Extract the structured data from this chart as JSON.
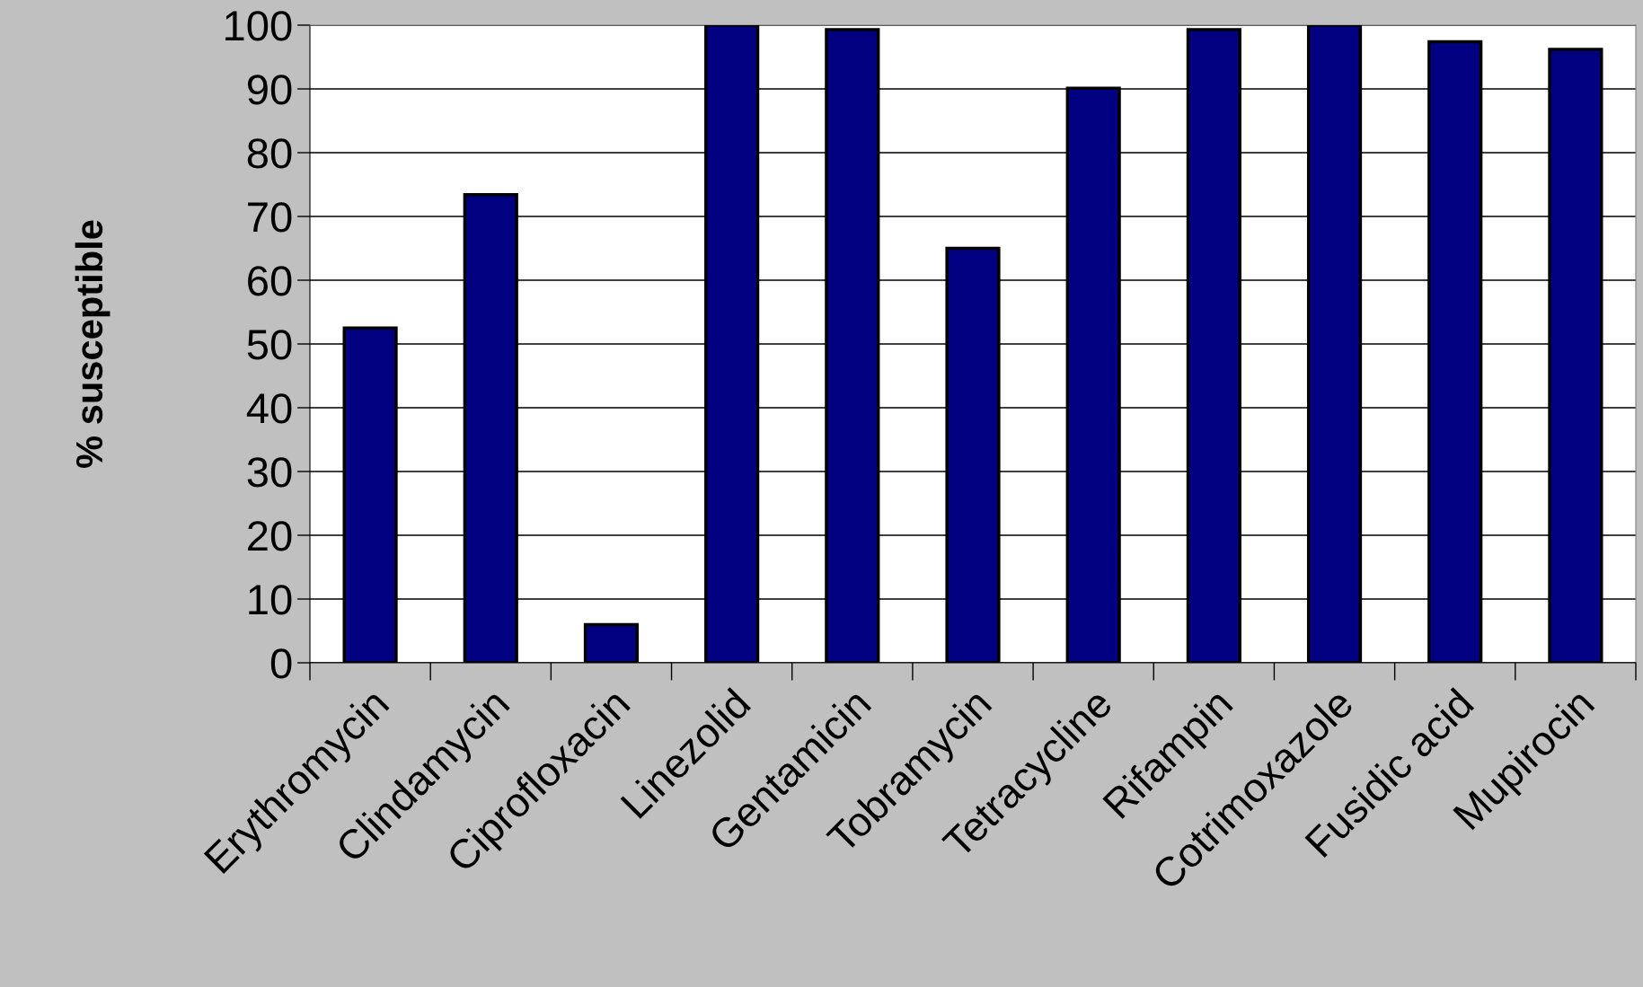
{
  "chart_data": {
    "type": "bar",
    "ylabel": "% susceptible",
    "categories": [
      "Erythromycin",
      "Clindamycin",
      "Ciprofloxacin",
      "Linezolid",
      "Gentamicin",
      "Tobramycin",
      "Tetracycline",
      "Rifampin",
      "Cotrimoxazole",
      "Fusidic acid",
      "Mupirocin"
    ],
    "values": [
      52.5,
      73.4,
      6,
      100,
      99.3,
      65,
      90.1,
      99.3,
      100,
      97.4,
      96.2
    ],
    "color": "#000080",
    "ylim": [
      0,
      100
    ],
    "yticks": [
      0,
      10,
      20,
      30,
      40,
      50,
      60,
      70,
      80,
      90,
      100
    ],
    "grid": "y",
    "legend": false
  }
}
